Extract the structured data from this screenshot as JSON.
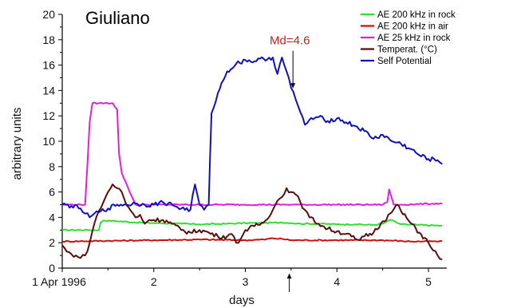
{
  "chart_data": {
    "type": "line",
    "title": "Giuliano",
    "xlabel": "days",
    "ylabel": "arbitrary units",
    "xlim": [
      1,
      5.2
    ],
    "ylim": [
      0,
      20
    ],
    "x_ticks": [
      1,
      2,
      3,
      4,
      5
    ],
    "x_tick_labels": [
      "1 Apr 1996",
      "2",
      "3",
      "4",
      "5"
    ],
    "y_ticks": [
      0,
      2,
      4,
      6,
      8,
      10,
      12,
      14,
      16,
      18,
      20
    ],
    "y_tick_labels": [
      "0",
      "2",
      "4",
      "6",
      "8",
      "10",
      "12",
      "14",
      "16",
      "18",
      "20"
    ],
    "legend_position": "top-right",
    "grid": false,
    "annotation": {
      "text": "Md=4.6",
      "x": 3.52,
      "y": 16.0,
      "color": "#cc2222"
    },
    "event_marker_x": 3.48,
    "series": [
      {
        "name": "AE 200 kHz in rock",
        "color": "#33dd33",
        "x": [
          1.0,
          1.3,
          1.4,
          1.42,
          1.45,
          1.6,
          1.8,
          2.0,
          2.3,
          2.5,
          2.8,
          3.0,
          3.2,
          3.4,
          3.5,
          3.6,
          3.8,
          4.0,
          4.2,
          4.4,
          4.5,
          4.55,
          4.6,
          4.65,
          4.7,
          4.9,
          5.1,
          5.15
        ],
        "values": [
          3.0,
          3.0,
          3.0,
          3.6,
          3.75,
          3.7,
          3.6,
          3.55,
          3.5,
          3.45,
          3.5,
          3.55,
          3.55,
          3.6,
          3.55,
          3.5,
          3.5,
          3.45,
          3.45,
          3.4,
          3.5,
          3.7,
          3.8,
          3.6,
          3.45,
          3.4,
          3.35,
          3.35
        ]
      },
      {
        "name": "AE 200 kHz in air",
        "color": "#cc1111",
        "x": [
          1.0,
          1.5,
          2.0,
          2.5,
          3.0,
          3.2,
          3.3,
          3.4,
          3.5,
          4.0,
          4.5,
          4.8,
          5.15
        ],
        "values": [
          2.1,
          2.15,
          2.2,
          2.25,
          2.2,
          2.25,
          2.35,
          2.3,
          2.2,
          2.2,
          2.2,
          2.1,
          2.1
        ]
      },
      {
        "name": "AE  25 kHz in rock",
        "color": "#dd22dd",
        "x": [
          1.0,
          1.25,
          1.3,
          1.33,
          1.4,
          1.55,
          1.6,
          1.62,
          1.65,
          1.72,
          1.8,
          2.0,
          2.5,
          3.0,
          3.5,
          4.0,
          4.5,
          4.55,
          4.57,
          4.6,
          4.62,
          4.7,
          5.15
        ],
        "values": [
          5.0,
          5.0,
          11.5,
          13.0,
          13.0,
          13.0,
          12.5,
          9.0,
          7.5,
          6.3,
          5.0,
          5.0,
          5.0,
          5.0,
          5.0,
          5.0,
          5.0,
          5.2,
          6.2,
          5.5,
          5.0,
          5.0,
          5.1
        ]
      },
      {
        "name": "Temperat. (°C)",
        "color": "#5a0e0e",
        "x": [
          1.0,
          1.05,
          1.1,
          1.15,
          1.2,
          1.25,
          1.3,
          1.35,
          1.4,
          1.45,
          1.5,
          1.55,
          1.6,
          1.65,
          1.7,
          1.75,
          1.8,
          1.85,
          1.9,
          1.95,
          2.0,
          2.1,
          2.2,
          2.3,
          2.4,
          2.5,
          2.6,
          2.7,
          2.8,
          2.85,
          2.9,
          2.95,
          3.0,
          3.1,
          3.2,
          3.3,
          3.35,
          3.4,
          3.45,
          3.5,
          3.55,
          3.6,
          3.65,
          3.7,
          3.8,
          3.9,
          4.0,
          4.1,
          4.2,
          4.25,
          4.3,
          4.4,
          4.5,
          4.6,
          4.65,
          4.7,
          4.8,
          4.9,
          5.0,
          5.05,
          5.1,
          5.15
        ],
        "values": [
          1.8,
          1.3,
          1.1,
          1.0,
          0.8,
          1.0,
          2.0,
          3.5,
          4.5,
          5.2,
          6.0,
          6.6,
          6.3,
          6.0,
          5.0,
          4.5,
          4.0,
          4.2,
          3.5,
          3.8,
          3.8,
          3.8,
          3.5,
          3.0,
          2.8,
          3.0,
          2.8,
          2.5,
          2.5,
          2.7,
          2.0,
          2.3,
          3.0,
          3.3,
          3.6,
          4.6,
          5.3,
          5.6,
          6.3,
          6.0,
          5.8,
          5.2,
          4.6,
          4.0,
          3.5,
          3.1,
          2.9,
          2.7,
          2.3,
          2.2,
          2.5,
          2.8,
          3.7,
          4.4,
          5.0,
          4.5,
          3.6,
          2.8,
          2.0,
          1.4,
          1.0,
          0.7
        ]
      },
      {
        "name": "Self Potential",
        "color": "#1111bb",
        "x": [
          1.0,
          1.1,
          1.2,
          1.25,
          1.3,
          1.35,
          1.4,
          1.5,
          1.6,
          1.7,
          1.8,
          1.9,
          2.0,
          2.1,
          2.2,
          2.3,
          2.4,
          2.45,
          2.5,
          2.55,
          2.6,
          2.63,
          2.7,
          2.8,
          2.9,
          3.0,
          3.1,
          3.2,
          3.3,
          3.35,
          3.4,
          3.45,
          3.5,
          3.55,
          3.6,
          3.65,
          3.7,
          3.8,
          3.9,
          4.0,
          4.1,
          4.2,
          4.3,
          4.4,
          4.5,
          4.6,
          4.7,
          4.8,
          4.9,
          5.0,
          5.1,
          5.15
        ],
        "values": [
          5.0,
          4.9,
          4.7,
          4.3,
          4.0,
          4.3,
          4.4,
          4.7,
          5.0,
          5.0,
          5.1,
          5.0,
          5.0,
          5.2,
          5.0,
          4.7,
          4.6,
          6.6,
          5.0,
          4.6,
          5.0,
          12.2,
          13.8,
          15.5,
          16.1,
          16.4,
          16.3,
          16.5,
          16.6,
          15.3,
          16.6,
          15.5,
          14.2,
          13.3,
          12.3,
          11.3,
          11.7,
          11.9,
          11.6,
          11.8,
          11.5,
          11.2,
          10.8,
          10.2,
          10.5,
          10.0,
          9.8,
          9.4,
          8.9,
          8.6,
          8.5,
          8.2
        ]
      }
    ]
  }
}
